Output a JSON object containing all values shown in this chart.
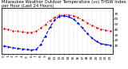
{
  "title": "Milwaukee Weather Outdoor Temperature (vs) THSW Index per Hour (Last 24 Hours)",
  "hours": [
    0,
    1,
    2,
    3,
    4,
    5,
    6,
    7,
    8,
    9,
    10,
    11,
    12,
    13,
    14,
    15,
    16,
    17,
    18,
    19,
    20,
    21,
    22,
    23
  ],
  "temp": [
    42,
    40,
    38,
    37,
    36,
    35,
    35,
    37,
    43,
    50,
    57,
    63,
    67,
    68,
    68,
    66,
    63,
    58,
    53,
    48,
    44,
    41,
    39,
    37
  ],
  "thsw": [
    10,
    8,
    6,
    5,
    4,
    3,
    2,
    3,
    12,
    28,
    45,
    58,
    65,
    66,
    64,
    60,
    53,
    43,
    33,
    25,
    18,
    14,
    12,
    11
  ],
  "temp_color": "#dd0000",
  "thsw_color": "#0000dd",
  "bg_color": "#ffffff",
  "grid_color": "#bbbbbb",
  "ylim": [
    -5,
    80
  ],
  "yticks_right": [
    10,
    20,
    30,
    40,
    50,
    60,
    70
  ],
  "ylabel_right_labels": [
    "10",
    "20",
    "30",
    "40",
    "50",
    "60",
    "70"
  ],
  "title_fontsize": 3.8,
  "tick_fontsize": 3.2,
  "line_width": 0.8,
  "marker_size": 1.5
}
